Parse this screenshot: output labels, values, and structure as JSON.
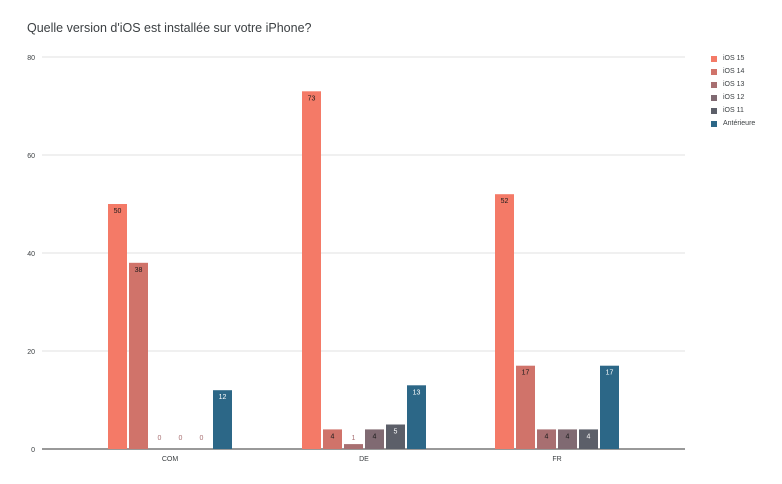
{
  "title": "Quelle version d'iOS est installée sur votre iPhone?",
  "chart_data": {
    "type": "bar",
    "title": "Quelle version d'iOS est installée sur votre iPhone?",
    "categories": [
      "COM",
      "DE",
      "FR"
    ],
    "series": [
      {
        "name": "iOS 15",
        "color": "#f47a67",
        "values": [
          50,
          73,
          52
        ]
      },
      {
        "name": "iOS 14",
        "color": "#d0736a",
        "values": [
          38,
          4,
          17
        ]
      },
      {
        "name": "iOS 13",
        "color": "#a86f71",
        "values": [
          0,
          1,
          4
        ]
      },
      {
        "name": "iOS 12",
        "color": "#806a72",
        "values": [
          0,
          4,
          4
        ]
      },
      {
        "name": "iOS 11",
        "color": "#5c5f69",
        "values": [
          0,
          5,
          4
        ]
      },
      {
        "name": "Antérieure",
        "color": "#2c6787",
        "values": [
          12,
          13,
          17
        ]
      }
    ],
    "ylim": [
      0,
      80
    ],
    "yticks": [
      0,
      20,
      40,
      60,
      80
    ],
    "grid": true,
    "legend_position": "right",
    "xlabel": "",
    "ylabel": ""
  }
}
